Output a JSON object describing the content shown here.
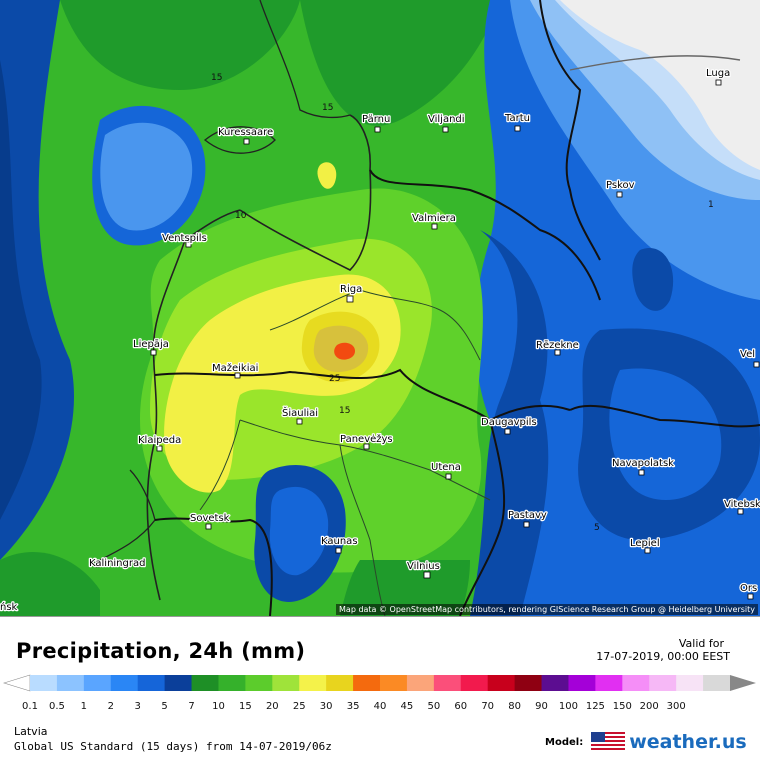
{
  "map": {
    "attribution": "Map data © OpenStreetMap contributors, rendering GIScience Research Group @ Heidelberg University",
    "colors": {
      "sea_deep": "#073c8c",
      "blue_dark": "#0b4aa8",
      "blue_mid": "#1566d8",
      "blue_light": "#4a96ee",
      "blue_pale": "#8fc1f5",
      "blue_faint": "#c5def9",
      "land_nodata": "#eeeeee",
      "green_dark": "#1f9b2b",
      "green_mid": "#37b72b",
      "green_light": "#5fd12b",
      "green_lime": "#9ae52b",
      "yellow_pale": "#f2f045",
      "yellow": "#e7db20",
      "gold": "#d7c13c",
      "orange_red": "#f24a10",
      "border": "#111111",
      "coast": "#222222"
    },
    "cities": [
      {
        "id": "luga",
        "label": "Luga"
      },
      {
        "id": "parnu",
        "label": "Pärnu"
      },
      {
        "id": "viljandi",
        "label": "Viljandi"
      },
      {
        "id": "tartu",
        "label": "Tartu"
      },
      {
        "id": "kuressaare",
        "label": "Kuressaare"
      },
      {
        "id": "pskov",
        "label": "Pskov"
      },
      {
        "id": "valmiera",
        "label": "Valmiera"
      },
      {
        "id": "ventspils",
        "label": "Ventspils"
      },
      {
        "id": "riga",
        "label": "Riga"
      },
      {
        "id": "liepaja",
        "label": "Liepāja"
      },
      {
        "id": "rezekne",
        "label": "Rēzekne"
      },
      {
        "id": "velikie",
        "label": "Vel"
      },
      {
        "id": "mazeikiai",
        "label": "Mažeikiai"
      },
      {
        "id": "siauliai",
        "label": "Šiauliai"
      },
      {
        "id": "klaipeda",
        "label": "Klaipeda"
      },
      {
        "id": "panevezys",
        "label": "Panevėžys"
      },
      {
        "id": "daugavpils",
        "label": "Daugavpils"
      },
      {
        "id": "utena",
        "label": "Utena"
      },
      {
        "id": "navapolatsk",
        "label": "Navapolatsk"
      },
      {
        "id": "vitebsk",
        "label": "Vitebsk"
      },
      {
        "id": "sovetsk",
        "label": "Sovetsk"
      },
      {
        "id": "pastavy",
        "label": "Pastavy"
      },
      {
        "id": "kaunas",
        "label": "Kaunas"
      },
      {
        "id": "kaliningrad",
        "label": "Kaliningrad"
      },
      {
        "id": "lepiel",
        "label": "Lepiel"
      },
      {
        "id": "vilnius",
        "label": "Vilnius"
      },
      {
        "id": "orsha",
        "label": "Ors"
      },
      {
        "id": "baltiysk",
        "label": "ńsk"
      }
    ],
    "contour_labels": [
      {
        "id": "c15a",
        "label": "15"
      },
      {
        "id": "c15b",
        "label": "15"
      },
      {
        "id": "c10",
        "label": "10"
      },
      {
        "id": "c25",
        "label": "25"
      },
      {
        "id": "c15c",
        "label": "15"
      },
      {
        "id": "c1",
        "label": "1"
      },
      {
        "id": "c5",
        "label": "5"
      }
    ]
  },
  "panel": {
    "title": "Precipitation, 24h (mm)",
    "valid_label": "Valid for",
    "valid_time": "17-07-2019, 00:00 EEST",
    "region": "Latvia",
    "run": "Global US Standard (15 days) from 14-07-2019/06z",
    "model_label": "Model:",
    "brand": "weather.us"
  },
  "legend": {
    "colors": [
      "#b9dcff",
      "#8cc3ff",
      "#5aa5ff",
      "#2a86f5",
      "#1565d9",
      "#0b3f9a",
      "#1e8f26",
      "#35b12b",
      "#5ccc2c",
      "#9fe33a",
      "#f4f24a",
      "#e8d41e",
      "#f46a0e",
      "#fb8a24",
      "#fba57a",
      "#fb4f7a",
      "#f21a4d",
      "#c8001c",
      "#8f0012",
      "#5c0d91",
      "#a400d8",
      "#e12ff2",
      "#f58ef7",
      "#f6b8f6",
      "#f7e3f6",
      "#d9d9d9"
    ],
    "ticks": [
      "0.1",
      "0.5",
      "1",
      "2",
      "3",
      "5",
      "7",
      "10",
      "15",
      "20",
      "25",
      "30",
      "35",
      "40",
      "45",
      "50",
      "60",
      "70",
      "80",
      "90",
      "100",
      "125",
      "150",
      "200",
      "300"
    ]
  }
}
